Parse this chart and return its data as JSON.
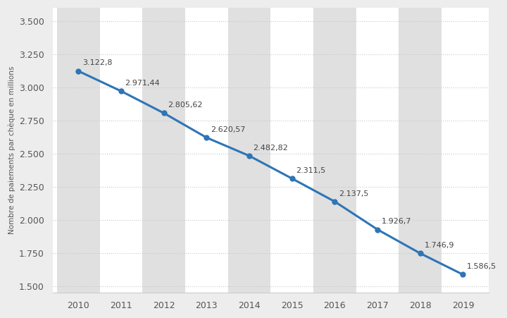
{
  "years": [
    2010,
    2011,
    2012,
    2013,
    2014,
    2015,
    2016,
    2017,
    2018,
    2019
  ],
  "values": [
    3122.8,
    2971.44,
    2805.62,
    2620.57,
    2482.82,
    2311.5,
    2137.5,
    1926.7,
    1746.9,
    1586.5
  ],
  "labels": [
    "3.122,8",
    "2.971,44",
    "2.805,62",
    "2.620,57",
    "2.482,82",
    "2.311,5",
    "2.137,5",
    "1.926,7",
    "1.746,9",
    "1.586,5"
  ],
  "line_color": "#2e75b6",
  "marker_color": "#2e75b6",
  "background_color": "#ededed",
  "plot_bg_color": "#ffffff",
  "band_color": "#e0e0e0",
  "ylabel": "Nombre de paiements par chèque en millions",
  "ytick_labels": [
    "1.500",
    "1.750",
    "2.000",
    "2.250",
    "2.500",
    "2.750",
    "3.000",
    "3.250",
    "3.500"
  ],
  "ytick_values": [
    1500,
    1750,
    2000,
    2250,
    2500,
    2750,
    3000,
    3250,
    3500
  ],
  "ylim": [
    1450,
    3600
  ],
  "xlim": [
    2009.4,
    2019.6
  ],
  "grid_color": "#c8c8c8",
  "label_fontsize": 8,
  "tick_fontsize": 9,
  "ylabel_fontsize": 7.5
}
